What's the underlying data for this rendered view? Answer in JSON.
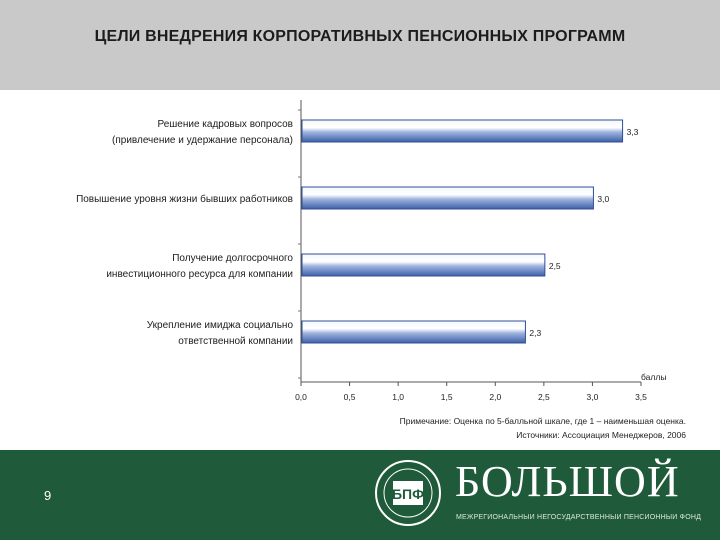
{
  "header": {
    "title": "ЦЕЛИ ВНЕДРЕНИЯ КОРПОРАТИВНЫХ ПЕНСИОННЫХ ПРОГРАММ"
  },
  "chart_data": {
    "type": "bar",
    "orientation": "horizontal",
    "categories": [
      [
        "Решение кадровых вопросов",
        "(привлечение и удержание персонала)"
      ],
      [
        "Повышение уровня жизни бывших работников"
      ],
      [
        "Получение долгосрочного",
        "инвестиционного ресурса для компании"
      ],
      [
        "Укрепление имиджа социально",
        "ответственной компании"
      ]
    ],
    "values": [
      3.3,
      3.0,
      2.5,
      2.3
    ],
    "value_labels": [
      "3,3",
      "3,0",
      "2,5",
      "2,3"
    ],
    "x_ticks": [
      "0,0",
      "0,5",
      "1,0",
      "1,5",
      "2,0",
      "2,5",
      "3,0",
      "3,5"
    ],
    "xlabel": "баллы",
    "xlim": [
      0,
      3.5
    ],
    "grid": false,
    "bar_color": "#3d5fa8"
  },
  "notes": {
    "remark": "Примечание: Оценка по 5-балльной шкале, где 1 – наименьшая оценка.",
    "source": "Источники: Ассоциация  Менеджеров, 2006"
  },
  "footer": {
    "page_number": "9",
    "brand": "БОЛЬШОЙ",
    "brand_sub": "МЕЖРЕГИОНАЛЬНЫЙ НЕГОСУДАРСТВЕННЫЙ ПЕНСИОННЫЙ ФОНД",
    "emblem_text": "БПФ",
    "colors": {
      "background": "#1f5b3a"
    }
  }
}
